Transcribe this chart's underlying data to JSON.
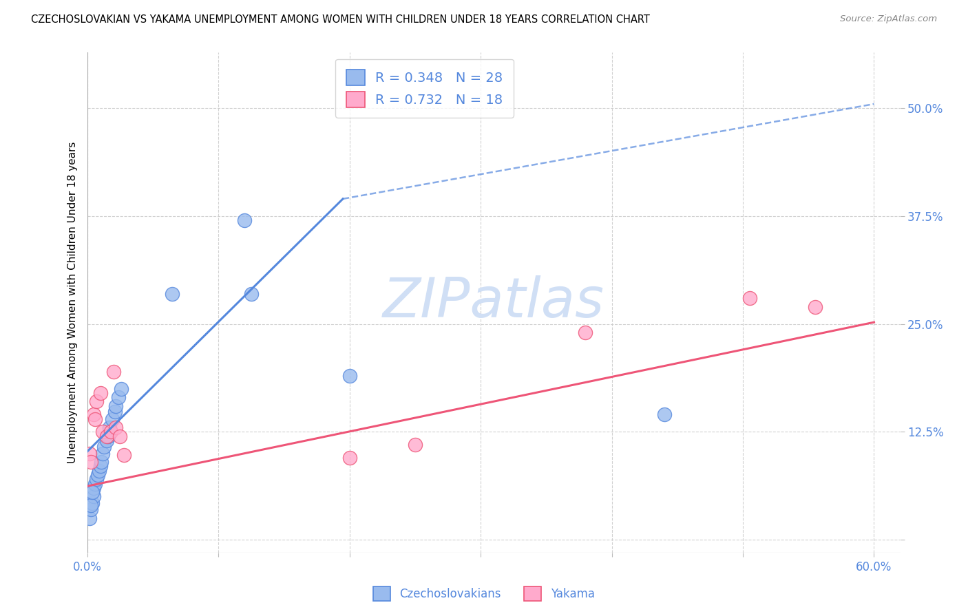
{
  "title": "CZECHOSLOVAKIAN VS YAKAMA UNEMPLOYMENT AMONG WOMEN WITH CHILDREN UNDER 18 YEARS CORRELATION CHART",
  "source": "Source: ZipAtlas.com",
  "ylabel": "Unemployment Among Women with Children Under 18 years",
  "xlim": [
    0.0,
    0.62
  ],
  "ylim": [
    -0.015,
    0.565
  ],
  "xticks": [
    0.0,
    0.1,
    0.2,
    0.3,
    0.4,
    0.5,
    0.6
  ],
  "xtick_labels": [
    "0.0%",
    "",
    "",
    "",
    "",
    "",
    "60.0%"
  ],
  "yticks": [
    0.0,
    0.125,
    0.25,
    0.375,
    0.5
  ],
  "ytick_labels": [
    "",
    "12.5%",
    "25.0%",
    "37.5%",
    "50.0%"
  ],
  "blue_color": "#5588dd",
  "pink_color": "#ee5577",
  "blue_fill": "#99bbee",
  "pink_fill": "#ffaacc",
  "watermark": "ZIPatlas",
  "watermark_color": "#d0dff5",
  "blue_line_solid": [
    [
      0.0,
      0.102
    ],
    [
      0.195,
      0.395
    ]
  ],
  "blue_line_dashed": [
    [
      0.195,
      0.395
    ],
    [
      0.6,
      0.505
    ]
  ],
  "pink_line": [
    [
      0.0,
      0.062
    ],
    [
      0.6,
      0.252
    ]
  ],
  "czech_x": [
    0.002,
    0.003,
    0.004,
    0.005,
    0.005,
    0.006,
    0.007,
    0.008,
    0.009,
    0.01,
    0.011,
    0.012,
    0.013,
    0.015,
    0.016,
    0.017,
    0.019,
    0.021,
    0.022,
    0.024,
    0.026,
    0.065,
    0.12,
    0.125,
    0.2,
    0.44,
    0.003,
    0.004
  ],
  "czech_y": [
    0.025,
    0.035,
    0.042,
    0.05,
    0.06,
    0.065,
    0.07,
    0.075,
    0.08,
    0.085,
    0.09,
    0.1,
    0.108,
    0.115,
    0.12,
    0.13,
    0.14,
    0.148,
    0.155,
    0.165,
    0.175,
    0.285,
    0.37,
    0.285,
    0.19,
    0.145,
    0.04,
    0.055
  ],
  "yakama_x": [
    0.002,
    0.003,
    0.005,
    0.006,
    0.007,
    0.01,
    0.012,
    0.015,
    0.018,
    0.02,
    0.022,
    0.025,
    0.028,
    0.2,
    0.25,
    0.38,
    0.505,
    0.555
  ],
  "yakama_y": [
    0.1,
    0.09,
    0.145,
    0.14,
    0.16,
    0.17,
    0.125,
    0.12,
    0.125,
    0.195,
    0.13,
    0.12,
    0.098,
    0.095,
    0.11,
    0.24,
    0.28,
    0.27
  ]
}
